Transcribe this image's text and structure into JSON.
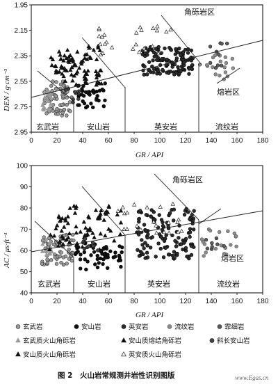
{
  "chart_data": [
    {
      "type": "scatter",
      "id": "top",
      "xlabel": "GR / API",
      "ylabel": "DEN / g·cm⁻³",
      "xlim": [
        0,
        180
      ],
      "ylim": [
        2.95,
        1.95
      ],
      "y_inverted": true,
      "xticks": [
        "0",
        "20",
        "40",
        "60",
        "80",
        "100",
        "120",
        "140",
        "160",
        "180"
      ],
      "yticks": [
        "1.95",
        "2.15",
        "2.35",
        "2.55",
        "2.75",
        "2.95"
      ],
      "zones": [
        "玄武岩",
        "安山岩",
        "英安岩",
        "流纹岩",
        "角砾岩区",
        "熔岩区"
      ],
      "boundaries_x": [
        33,
        73,
        130
      ],
      "series": [
        {
          "name": "玄武岩",
          "n": 70,
          "xr": [
            10,
            32
          ],
          "yr": [
            2.55,
            2.82
          ]
        },
        {
          "name": "安山岩",
          "n": 40,
          "xr": [
            34,
            58
          ],
          "yr": [
            2.56,
            2.76
          ]
        },
        {
          "name": "英安岩",
          "n": 120,
          "xr": [
            86,
            126
          ],
          "yr": [
            2.28,
            2.5
          ]
        },
        {
          "name": "流纹岩",
          "n": 18,
          "xr": [
            131,
            158
          ],
          "yr": [
            2.34,
            2.55
          ]
        },
        {
          "name": "霏细岩",
          "n": 10,
          "xr": [
            138,
            155
          ],
          "yr": [
            2.25,
            2.45
          ]
        },
        {
          "name": "玄武质火山角砾岩",
          "n": 16,
          "xr": [
            8,
            16
          ],
          "yr": [
            2.62,
            2.8
          ]
        },
        {
          "name": "安山质熔结角砾岩",
          "n": 55,
          "xr": [
            15,
            55
          ],
          "yr": [
            2.27,
            2.58
          ]
        },
        {
          "name": "斜长安山岩",
          "n": 10,
          "xr": [
            26,
            38
          ],
          "yr": [
            2.6,
            2.72
          ]
        },
        {
          "name": "安山质火山角砾岩",
          "n": 30,
          "xr": [
            16,
            45
          ],
          "yr": [
            2.34,
            2.52
          ]
        },
        {
          "name": "英安质火山角砾岩",
          "n": 26,
          "xr": [
            52,
            115
          ],
          "yr": [
            2.12,
            2.36
          ]
        }
      ]
    },
    {
      "type": "scatter",
      "id": "bottom",
      "xlabel": "GR / API",
      "ylabel": "AC / μs·ft⁻¹",
      "xlim": [
        0,
        180
      ],
      "ylim": [
        100,
        40
      ],
      "y_inverted": true,
      "xticks": [
        "0",
        "20",
        "40",
        "60",
        "80",
        "100",
        "120",
        "140",
        "160",
        "180"
      ],
      "yticks": [
        "100",
        "90",
        "80",
        "70",
        "60",
        "50",
        "40"
      ],
      "zones": [
        "玄武岩",
        "安山岩",
        "英安岩",
        "流纹岩",
        "角砾岩区",
        "熔岩区"
      ],
      "boundaries_x": [
        33,
        73,
        130
      ],
      "series": [
        {
          "name": "玄武岩",
          "n": 65,
          "xr": [
            8,
            33
          ],
          "yr": [
            53,
            68
          ]
        },
        {
          "name": "安山岩",
          "n": 55,
          "xr": [
            34,
            72
          ],
          "yr": [
            51,
            64
          ]
        },
        {
          "name": "英安岩",
          "n": 130,
          "xr": [
            82,
            128
          ],
          "yr": [
            56,
            80
          ]
        },
        {
          "name": "流纹岩",
          "n": 20,
          "xr": [
            130,
            160
          ],
          "yr": [
            57,
            70
          ]
        },
        {
          "name": "霏细岩",
          "n": 8,
          "xr": [
            134,
            150
          ],
          "yr": [
            60,
            66
          ]
        },
        {
          "name": "玄武质火山角砾岩",
          "n": 14,
          "xr": [
            8,
            16
          ],
          "yr": [
            58,
            66
          ]
        },
        {
          "name": "安山质熔结角砾岩",
          "n": 50,
          "xr": [
            14,
            70
          ],
          "yr": [
            60,
            83
          ]
        },
        {
          "name": "斜长安山岩",
          "n": 10,
          "xr": [
            36,
            52
          ],
          "yr": [
            60,
            66
          ]
        },
        {
          "name": "安山质火山角砾岩",
          "n": 25,
          "xr": [
            18,
            45
          ],
          "yr": [
            62,
            78
          ]
        },
        {
          "name": "英安质火山角砾岩",
          "n": 22,
          "xr": [
            65,
            120
          ],
          "yr": [
            68,
            82
          ]
        }
      ]
    }
  ],
  "legend": [
    {
      "name": "玄武岩",
      "marker": "circle-gray"
    },
    {
      "name": "安山岩",
      "marker": "circle-black"
    },
    {
      "name": "英安岩",
      "marker": "circle-dark"
    },
    {
      "name": "流纹岩",
      "marker": "circle-graylight"
    },
    {
      "name": "霏细岩",
      "marker": "circle-mid"
    },
    {
      "name": "玄武质火山角砾岩",
      "marker": "triangle-gray"
    },
    {
      "name": "安山质熔结角砾岩",
      "marker": "triangle-black"
    },
    {
      "name": "斜长安山岩",
      "marker": "circle-darkgray"
    },
    {
      "name": "安山质火山角砾岩",
      "marker": "triangle-black"
    },
    {
      "name": "英安质火山角砾岩",
      "marker": "triangle-open"
    }
  ],
  "caption": "图 2　火山岩常规测井岩性识别图版",
  "watermark": "www.Egas.cn",
  "colors": {
    "玄武岩": "#8a8a8a",
    "安山岩": "#111111",
    "英安岩": "#2a2a2a",
    "流纹岩": "#7a7a7a",
    "霏细岩": "#555555",
    "玄武质火山角砾岩": "#9a9a9a",
    "安山质熔结角砾岩": "#111111",
    "斜长安山岩": "#3a3a3a",
    "安山质火山角砾岩": "#111111",
    "英安质火山角砾岩": "#ffffff"
  }
}
